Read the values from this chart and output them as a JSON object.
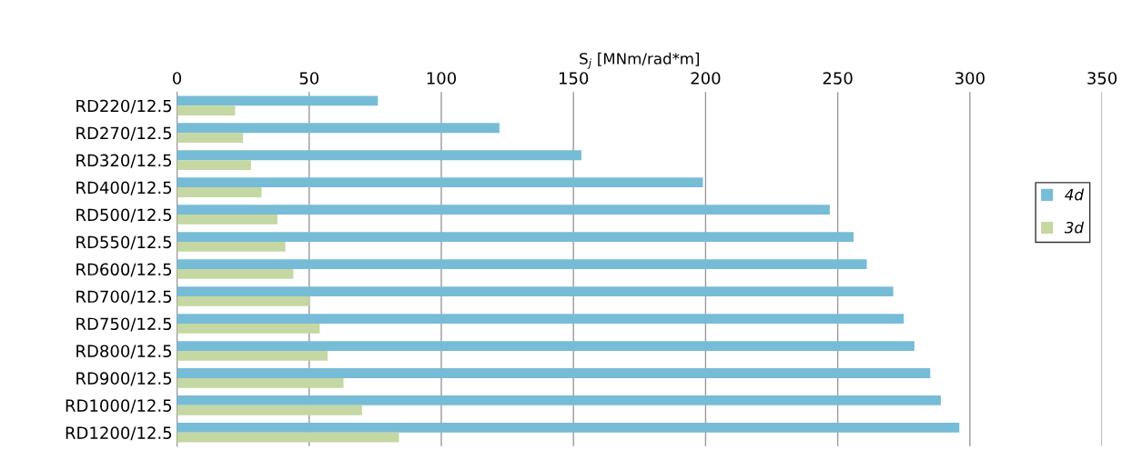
{
  "chart_data": {
    "type": "bar",
    "orientation": "horizontal",
    "xlabel": "S$_{j}$ [MNm/rad*m]",
    "categories": [
      "RD220/12.5",
      "RD270/12.5",
      "RD320/12.5",
      "RD400/12.5",
      "RD500/12.5",
      "RD550/12.5",
      "RD600/12.5",
      "RD700/12.5",
      "RD750/12.5",
      "RD800/12.5",
      "RD900/12.5",
      "RD1000/12.5",
      "RD1200/12.5"
    ],
    "series": [
      {
        "name": "4d",
        "color": "#77bcd6",
        "values": [
          76,
          122,
          153,
          199,
          247,
          256,
          261,
          271,
          275,
          279,
          285,
          289,
          296
        ]
      },
      {
        "name": "3d",
        "color": "#c5d7a2",
        "values": [
          22,
          25,
          28,
          32,
          38,
          41,
          44,
          50,
          54,
          57,
          63,
          70,
          84
        ]
      }
    ],
    "xlim": [
      0,
      350
    ],
    "xticks": [
      0,
      50,
      100,
      150,
      200,
      250,
      300,
      350
    ],
    "grid": "x",
    "legend": "right"
  }
}
